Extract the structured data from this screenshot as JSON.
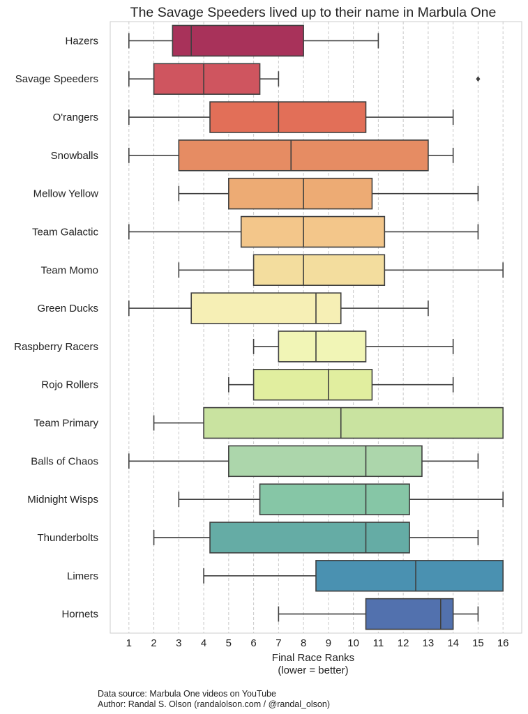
{
  "chart_data": {
    "type": "boxplot",
    "orientation": "horizontal",
    "title": "The Savage Speeders lived up to their name in Marbula One",
    "xlabel": "Final Race Ranks",
    "xlabel_note": "(lower = better)",
    "xlim": [
      0.25,
      16.75
    ],
    "xticks": [
      1,
      2,
      3,
      4,
      5,
      6,
      7,
      8,
      9,
      10,
      11,
      12,
      13,
      14,
      15,
      16
    ],
    "grid": "vertical dashed",
    "series": [
      {
        "name": "Hazers",
        "whisker_low": 1,
        "q1": 2.75,
        "median": 3.5,
        "q3": 8,
        "whisker_high": 11,
        "outliers": [],
        "color": "#A8325A"
      },
      {
        "name": "Savage Speeders",
        "whisker_low": 1,
        "q1": 2,
        "median": 4,
        "q3": 6.25,
        "whisker_high": 7,
        "outliers": [
          15
        ],
        "color": "#CF555F"
      },
      {
        "name": "O'rangers",
        "whisker_low": 1,
        "q1": 4.25,
        "median": 7,
        "q3": 10.5,
        "whisker_high": 14,
        "outliers": [],
        "color": "#E26F58"
      },
      {
        "name": "Snowballs",
        "whisker_low": 1,
        "q1": 3,
        "median": 7.5,
        "q3": 13,
        "whisker_high": 14,
        "outliers": [],
        "color": "#E68C63"
      },
      {
        "name": "Mellow Yellow",
        "whisker_low": 3,
        "q1": 5,
        "median": 8,
        "q3": 10.75,
        "whisker_high": 15,
        "outliers": [],
        "color": "#EDAB74"
      },
      {
        "name": "Team Galactic",
        "whisker_low": 1,
        "q1": 5.5,
        "median": 8,
        "q3": 11.25,
        "whisker_high": 15,
        "outliers": [],
        "color": "#F3C68A"
      },
      {
        "name": "Team Momo",
        "whisker_low": 3,
        "q1": 6,
        "median": 8,
        "q3": 11.25,
        "whisker_high": 16,
        "outliers": [],
        "color": "#F3DD9E"
      },
      {
        "name": "Green Ducks",
        "whisker_low": 1,
        "q1": 3.5,
        "median": 8.5,
        "q3": 9.5,
        "whisker_high": 13,
        "outliers": [],
        "color": "#F6EFB5"
      },
      {
        "name": "Raspberry Racers",
        "whisker_low": 6,
        "q1": 7,
        "median": 8.5,
        "q3": 10.5,
        "whisker_high": 14,
        "outliers": [],
        "color": "#F1F5B6"
      },
      {
        "name": "Rojo Rollers",
        "whisker_low": 5,
        "q1": 6,
        "median": 9,
        "q3": 10.75,
        "whisker_high": 14,
        "outliers": [],
        "color": "#E1EE9F"
      },
      {
        "name": "Team Primary",
        "whisker_low": 2,
        "q1": 4,
        "median": 9.5,
        "q3": 16,
        "whisker_high": 16,
        "outliers": [],
        "color": "#C9E3A0"
      },
      {
        "name": "Balls of Chaos",
        "whisker_low": 1,
        "q1": 5,
        "median": 10.5,
        "q3": 12.75,
        "whisker_high": 15,
        "outliers": [],
        "color": "#ACD6AB"
      },
      {
        "name": "Midnight Wisps",
        "whisker_low": 3,
        "q1": 6.25,
        "median": 10.5,
        "q3": 12.25,
        "whisker_high": 16,
        "outliers": [],
        "color": "#86C6A6"
      },
      {
        "name": "Thunderbolts",
        "whisker_low": 2,
        "q1": 4.25,
        "median": 10.5,
        "q3": 12.25,
        "whisker_high": 15,
        "outliers": [],
        "color": "#65ACA5"
      },
      {
        "name": "Limers",
        "whisker_low": 4,
        "q1": 8.5,
        "median": 12.5,
        "q3": 16,
        "whisker_high": 16,
        "outliers": [],
        "color": "#4A91B1"
      },
      {
        "name": "Hornets",
        "whisker_low": 7,
        "q1": 10.5,
        "median": 13.5,
        "q3": 14,
        "whisker_high": 15,
        "outliers": [],
        "color": "#5271AE"
      }
    ]
  },
  "footer": {
    "source": "Data source: Marbula One videos on YouTube",
    "author": "Author: Randal S. Olson (randalolson.com / @randal_olson)"
  }
}
